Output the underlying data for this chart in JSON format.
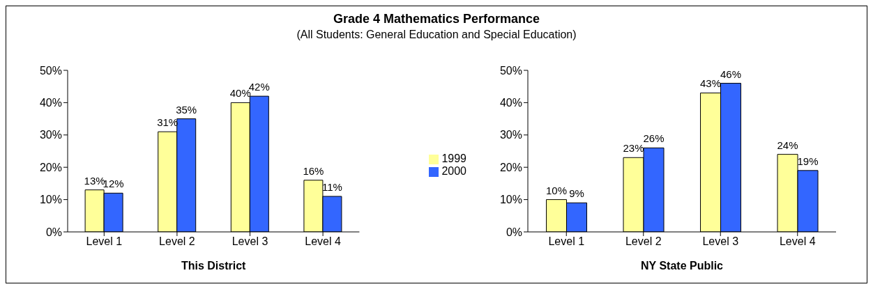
{
  "chart_data": [
    {
      "type": "bar",
      "title": "Grade 4 Mathematics Performance",
      "subtitle": "(All Students: General Education and Special Education)",
      "xlabel": "This District",
      "categories": [
        "Level 1",
        "Level 2",
        "Level 3",
        "Level 4"
      ],
      "series": [
        {
          "name": "1999",
          "color": "#ffff99",
          "values": [
            13,
            31,
            40,
            16
          ],
          "value_labels": [
            "13%",
            "31%",
            "40%",
            "16%"
          ]
        },
        {
          "name": "2000",
          "color": "#3366ff",
          "values": [
            12,
            35,
            42,
            11
          ],
          "value_labels": [
            "12%",
            "35%",
            "42%",
            "11%"
          ]
        }
      ],
      "ylim": [
        0,
        50
      ],
      "yticks": [
        {
          "value": 0,
          "label": "0%"
        },
        {
          "value": 10,
          "label": "10%"
        },
        {
          "value": 20,
          "label": "20%"
        },
        {
          "value": 30,
          "label": "30%"
        },
        {
          "value": 40,
          "label": "40%"
        },
        {
          "value": 50,
          "label": "50%"
        }
      ],
      "legend": "right"
    },
    {
      "type": "bar",
      "xlabel": "NY State Public",
      "categories": [
        "Level 1",
        "Level 2",
        "Level 3",
        "Level 4"
      ],
      "series": [
        {
          "color": "#ffff99",
          "values": [
            10,
            23,
            43,
            24
          ],
          "value_labels": [
            "10%",
            "23%",
            "43%",
            "24%"
          ]
        },
        {
          "color": "#3366ff",
          "values": [
            9,
            26,
            46,
            19
          ],
          "value_labels": [
            "9%",
            "26%",
            "46%",
            "19%"
          ]
        }
      ],
      "ylim": [
        0,
        50
      ],
      "yticks": [
        {
          "value": 0,
          "label": "0%"
        },
        {
          "value": 10,
          "label": "10%"
        },
        {
          "value": 20,
          "label": "20%"
        },
        {
          "value": 30,
          "label": "30%"
        },
        {
          "value": 40,
          "label": "40%"
        },
        {
          "value": 50,
          "label": "50%"
        }
      ]
    }
  ]
}
